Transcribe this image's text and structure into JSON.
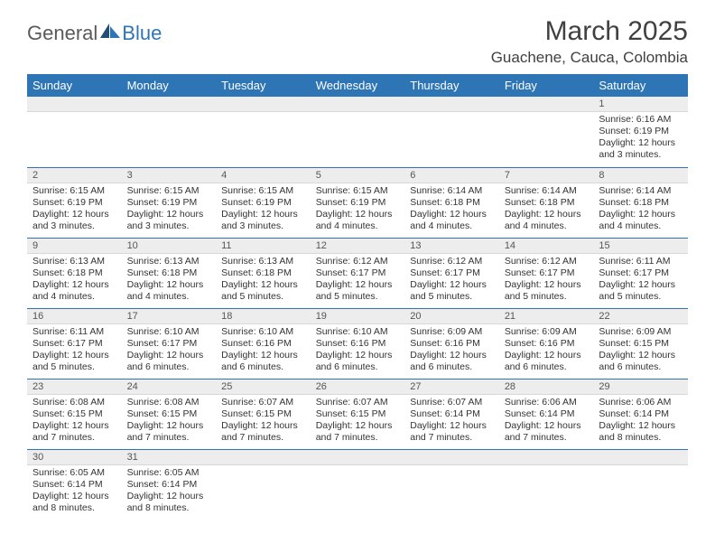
{
  "brand": {
    "part1": "General",
    "part2": "Blue"
  },
  "title": "March 2025",
  "location": "Guachene, Cauca, Colombia",
  "colors": {
    "header_bg": "#2e75b6",
    "header_text": "#ffffff",
    "daynum_bg": "#ededed",
    "row_border": "#2e75b6",
    "logo_accent": "#2e75b6",
    "logo_gray": "#5a5a5a",
    "body_text": "#333333"
  },
  "day_headers": [
    "Sunday",
    "Monday",
    "Tuesday",
    "Wednesday",
    "Thursday",
    "Friday",
    "Saturday"
  ],
  "weeks": [
    [
      null,
      null,
      null,
      null,
      null,
      null,
      {
        "n": "1",
        "sr": "6:16 AM",
        "ss": "6:19 PM",
        "dl": "12 hours and 3 minutes."
      }
    ],
    [
      {
        "n": "2",
        "sr": "6:15 AM",
        "ss": "6:19 PM",
        "dl": "12 hours and 3 minutes."
      },
      {
        "n": "3",
        "sr": "6:15 AM",
        "ss": "6:19 PM",
        "dl": "12 hours and 3 minutes."
      },
      {
        "n": "4",
        "sr": "6:15 AM",
        "ss": "6:19 PM",
        "dl": "12 hours and 3 minutes."
      },
      {
        "n": "5",
        "sr": "6:15 AM",
        "ss": "6:19 PM",
        "dl": "12 hours and 4 minutes."
      },
      {
        "n": "6",
        "sr": "6:14 AM",
        "ss": "6:18 PM",
        "dl": "12 hours and 4 minutes."
      },
      {
        "n": "7",
        "sr": "6:14 AM",
        "ss": "6:18 PM",
        "dl": "12 hours and 4 minutes."
      },
      {
        "n": "8",
        "sr": "6:14 AM",
        "ss": "6:18 PM",
        "dl": "12 hours and 4 minutes."
      }
    ],
    [
      {
        "n": "9",
        "sr": "6:13 AM",
        "ss": "6:18 PM",
        "dl": "12 hours and 4 minutes."
      },
      {
        "n": "10",
        "sr": "6:13 AM",
        "ss": "6:18 PM",
        "dl": "12 hours and 4 minutes."
      },
      {
        "n": "11",
        "sr": "6:13 AM",
        "ss": "6:18 PM",
        "dl": "12 hours and 5 minutes."
      },
      {
        "n": "12",
        "sr": "6:12 AM",
        "ss": "6:17 PM",
        "dl": "12 hours and 5 minutes."
      },
      {
        "n": "13",
        "sr": "6:12 AM",
        "ss": "6:17 PM",
        "dl": "12 hours and 5 minutes."
      },
      {
        "n": "14",
        "sr": "6:12 AM",
        "ss": "6:17 PM",
        "dl": "12 hours and 5 minutes."
      },
      {
        "n": "15",
        "sr": "6:11 AM",
        "ss": "6:17 PM",
        "dl": "12 hours and 5 minutes."
      }
    ],
    [
      {
        "n": "16",
        "sr": "6:11 AM",
        "ss": "6:17 PM",
        "dl": "12 hours and 5 minutes."
      },
      {
        "n": "17",
        "sr": "6:10 AM",
        "ss": "6:17 PM",
        "dl": "12 hours and 6 minutes."
      },
      {
        "n": "18",
        "sr": "6:10 AM",
        "ss": "6:16 PM",
        "dl": "12 hours and 6 minutes."
      },
      {
        "n": "19",
        "sr": "6:10 AM",
        "ss": "6:16 PM",
        "dl": "12 hours and 6 minutes."
      },
      {
        "n": "20",
        "sr": "6:09 AM",
        "ss": "6:16 PM",
        "dl": "12 hours and 6 minutes."
      },
      {
        "n": "21",
        "sr": "6:09 AM",
        "ss": "6:16 PM",
        "dl": "12 hours and 6 minutes."
      },
      {
        "n": "22",
        "sr": "6:09 AM",
        "ss": "6:15 PM",
        "dl": "12 hours and 6 minutes."
      }
    ],
    [
      {
        "n": "23",
        "sr": "6:08 AM",
        "ss": "6:15 PM",
        "dl": "12 hours and 7 minutes."
      },
      {
        "n": "24",
        "sr": "6:08 AM",
        "ss": "6:15 PM",
        "dl": "12 hours and 7 minutes."
      },
      {
        "n": "25",
        "sr": "6:07 AM",
        "ss": "6:15 PM",
        "dl": "12 hours and 7 minutes."
      },
      {
        "n": "26",
        "sr": "6:07 AM",
        "ss": "6:15 PM",
        "dl": "12 hours and 7 minutes."
      },
      {
        "n": "27",
        "sr": "6:07 AM",
        "ss": "6:14 PM",
        "dl": "12 hours and 7 minutes."
      },
      {
        "n": "28",
        "sr": "6:06 AM",
        "ss": "6:14 PM",
        "dl": "12 hours and 7 minutes."
      },
      {
        "n": "29",
        "sr": "6:06 AM",
        "ss": "6:14 PM",
        "dl": "12 hours and 8 minutes."
      }
    ],
    [
      {
        "n": "30",
        "sr": "6:05 AM",
        "ss": "6:14 PM",
        "dl": "12 hours and 8 minutes."
      },
      {
        "n": "31",
        "sr": "6:05 AM",
        "ss": "6:14 PM",
        "dl": "12 hours and 8 minutes."
      },
      null,
      null,
      null,
      null,
      null
    ]
  ],
  "labels": {
    "sunrise": "Sunrise: ",
    "sunset": "Sunset: ",
    "daylight": "Daylight: "
  }
}
